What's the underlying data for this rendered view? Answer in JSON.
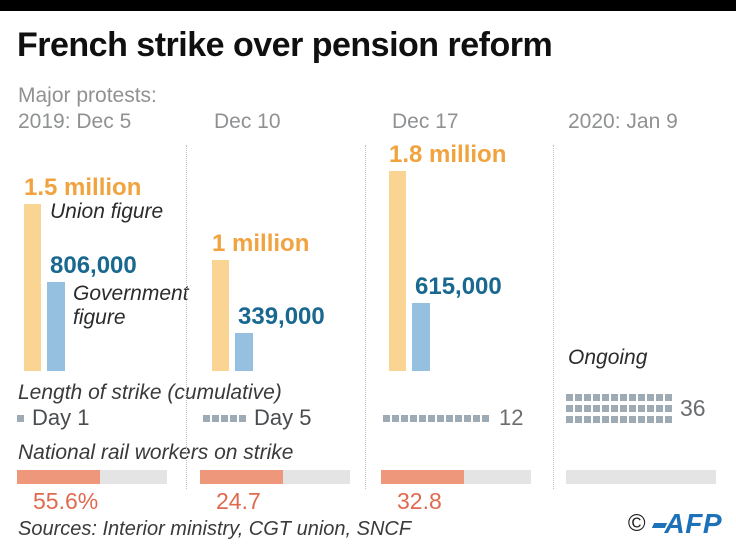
{
  "header": {
    "title": "French strike over pension reform",
    "subtitle": "Major protests:"
  },
  "legend": {
    "union_label": "Union figure",
    "government_label": "Government figure"
  },
  "sections": {
    "strike_length_label": "Length of strike (cumulative)",
    "rail_label": "National rail workers on strike"
  },
  "footer": {
    "sources": "Sources: Interior ministry, CGT union, SNCF",
    "copyright": "©",
    "brand": "AFP"
  },
  "colors": {
    "union_bar": "#f9d493",
    "union_text": "#f0a33f",
    "government_bar": "#96c0e0",
    "government_text": "#19688f",
    "square": "#9fabb4",
    "rail_fill": "#ef977a",
    "rail_text": "#e06a50",
    "header_gray": "#8f9193",
    "afp_blue": "#1d71b8"
  },
  "chart_data": {
    "type": "bar",
    "title": "French strike over pension reform",
    "subtitle": "Major protests:",
    "categories": [
      "2019: Dec 5",
      "Dec 10",
      "Dec 17",
      "2020: Jan 9"
    ],
    "series": [
      {
        "name": "Union figure",
        "values": [
          1500000,
          1000000,
          1800000,
          null
        ],
        "labels": [
          "1.5 million",
          "1 million",
          "1.8 million",
          ""
        ]
      },
      {
        "name": "Government figure",
        "values": [
          806000,
          339000,
          615000,
          null
        ],
        "labels": [
          "806,000",
          "339,000",
          "615,000",
          ""
        ]
      }
    ],
    "ongoing_label": "Ongoing",
    "strike_length_days": {
      "label": "Length of strike (cumulative)",
      "values": [
        1,
        5,
        12,
        36
      ],
      "labels": [
        "Day 1",
        "Day 5",
        "12",
        "36"
      ]
    },
    "rail_workers_on_strike_pct": {
      "label": "National rail workers on strike",
      "values": [
        55.6,
        24.7,
        32.8,
        null
      ],
      "labels": [
        "55.6%",
        "24.7",
        "32.8",
        ""
      ],
      "visual_fill_fraction": [
        0.55,
        0.55,
        0.55,
        0
      ]
    },
    "layout_hints": {
      "bars_bottom_aligned": true,
      "value_labels_above_bars": true,
      "grid": false,
      "legend_position": "inline-first-column"
    }
  }
}
